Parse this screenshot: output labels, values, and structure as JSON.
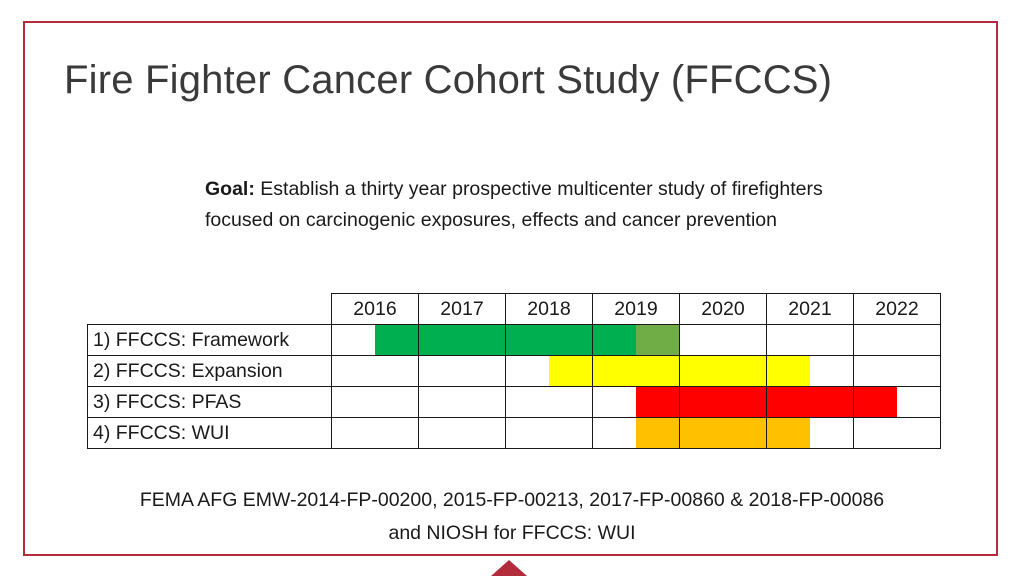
{
  "title": "Fire Fighter Cancer Cohort Study (FFCCS)",
  "goal": {
    "label": "Goal:",
    "text": "Establish a thirty year prospective multicenter study of firefighters focused on carcinogenic exposures, effects and cancer prevention"
  },
  "gantt": {
    "years": [
      "2016",
      "2017",
      "2018",
      "2019",
      "2020",
      "2021",
      "2022"
    ],
    "rows": [
      {
        "label": "1) FFCCS: Framework",
        "start": 2016.5,
        "end": 2019.5,
        "color": "#00b050",
        "tail_start": 2019.5,
        "tail_end": 2020.0,
        "tail_color": "#70ad47"
      },
      {
        "label": "2) FFCCS: Expansion",
        "start": 2018.5,
        "end": 2021.5,
        "color": "#ffff00"
      },
      {
        "label": "3) FFCCS: PFAS",
        "start": 2019.5,
        "end": 2022.5,
        "color": "#ff0000"
      },
      {
        "label": "4) FFCCS: WUI",
        "start": 2019.5,
        "end": 2021.5,
        "color": "#ffc000"
      }
    ]
  },
  "footer": {
    "line1": "FEMA AFG EMW-2014-FP-00200, 2015-FP-00213, 2017-FP-00860 & 2018-FP-00086",
    "line2": "and NIOSH for FFCCS: WUI"
  },
  "colors": {
    "frame": "#b22c3c"
  }
}
